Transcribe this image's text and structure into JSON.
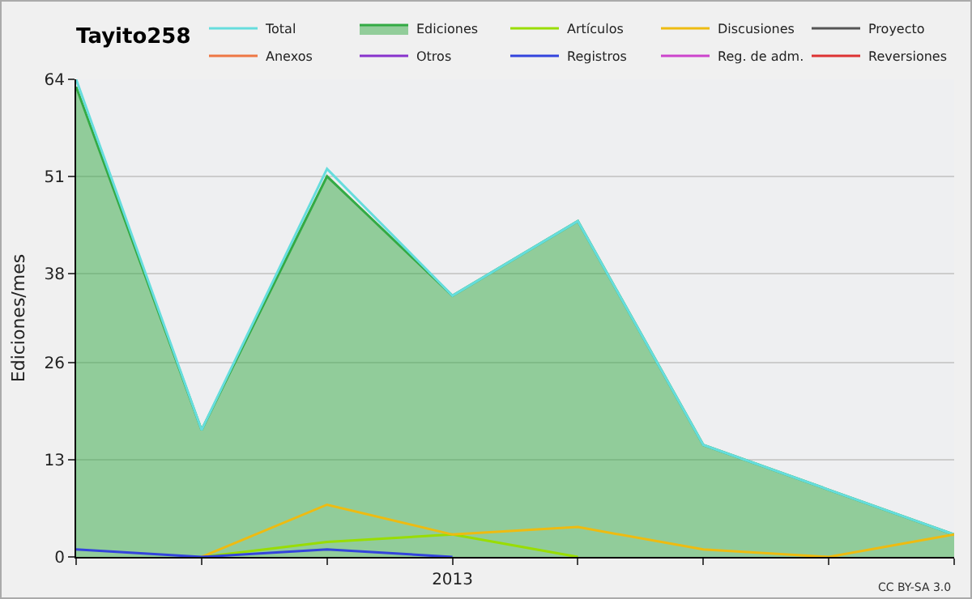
{
  "chart_data": {
    "type": "line",
    "title": "Tayito258",
    "ylabel": "Ediciones/mes",
    "categories": [
      null,
      null,
      null,
      "2013",
      null,
      null,
      null,
      null
    ],
    "series": [
      {
        "name": "Total",
        "color": "#66dddd",
        "values": [
          64,
          17,
          52,
          35,
          45,
          15,
          9,
          3
        ]
      },
      {
        "name": "Ediciones",
        "type": "area",
        "color": "#33aa44",
        "values": [
          63,
          17,
          51,
          35,
          45,
          15,
          9,
          3
        ]
      },
      {
        "name": "Artículos",
        "color": "#99dd00",
        "values": [
          null,
          0,
          2,
          3,
          0,
          null,
          null,
          null
        ]
      },
      {
        "name": "Discusiones",
        "color": "#eebb11",
        "values": [
          null,
          0,
          7,
          3,
          4,
          1,
          0,
          3
        ]
      },
      {
        "name": "Proyecto",
        "color": "#555555",
        "values": [
          null,
          null,
          null,
          null,
          null,
          null,
          null,
          null
        ]
      },
      {
        "name": "Anexos",
        "color": "#ee7744",
        "values": [
          null,
          null,
          null,
          null,
          null,
          null,
          null,
          null
        ]
      },
      {
        "name": "Otros",
        "color": "#8833cc",
        "values": [
          null,
          null,
          null,
          null,
          null,
          null,
          null,
          null
        ]
      },
      {
        "name": "Registros",
        "color": "#3344dd",
        "values": [
          1,
          0,
          1,
          0,
          null,
          null,
          null,
          null
        ]
      },
      {
        "name": "Reg. de adm.",
        "color": "#cc44cc",
        "values": [
          null,
          null,
          null,
          null,
          null,
          null,
          null,
          null
        ]
      },
      {
        "name": "Reversiones",
        "color": "#dd3333",
        "values": [
          null,
          null,
          null,
          null,
          null,
          null,
          null,
          null
        ]
      }
    ],
    "ylim": [
      0,
      64
    ],
    "yticks": [
      0,
      13,
      26,
      38,
      51,
      64
    ],
    "grid": "y",
    "legend": "top right",
    "annotations": [
      "CC BY-SA 3.0"
    ]
  }
}
